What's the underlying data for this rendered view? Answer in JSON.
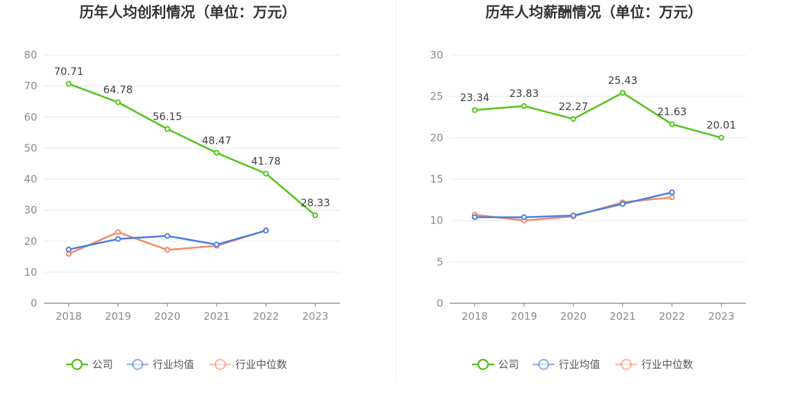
{
  "chart_data": [
    {
      "type": "line",
      "title": "历年人均创利情况（单位：万元）",
      "categories": [
        "2018",
        "2019",
        "2020",
        "2021",
        "2022",
        "2023"
      ],
      "ylim": [
        0,
        80
      ],
      "yticks": [
        0,
        10,
        20,
        30,
        40,
        50,
        60,
        70,
        80
      ],
      "grid": true,
      "legend_position": "bottom",
      "series": [
        {
          "name": "公司",
          "color": "#52c41a",
          "values": [
            70.71,
            64.78,
            56.15,
            48.47,
            41.78,
            28.33
          ],
          "labels": [
            "70.71",
            "64.78",
            "56.15",
            "48.47",
            "41.78",
            "28.33"
          ]
        },
        {
          "name": "行业均值",
          "color": "#4a7fe0",
          "values": [
            17.3,
            20.7,
            21.7,
            18.9,
            23.4,
            null
          ]
        },
        {
          "name": "行业中位数",
          "color": "#f08b66",
          "values": [
            15.9,
            22.9,
            17.2,
            18.5,
            23.5,
            null
          ]
        }
      ]
    },
    {
      "type": "line",
      "title": "历年人均薪酬情况（单位：万元）",
      "categories": [
        "2018",
        "2019",
        "2020",
        "2021",
        "2022",
        "2023"
      ],
      "ylim": [
        0,
        30
      ],
      "yticks": [
        0,
        5,
        10,
        15,
        20,
        25,
        30
      ],
      "grid": true,
      "legend_position": "bottom",
      "series": [
        {
          "name": "公司",
          "color": "#52c41a",
          "values": [
            23.34,
            23.83,
            22.27,
            25.43,
            21.63,
            20.01
          ],
          "labels": [
            "23.34",
            "23.83",
            "22.27",
            "25.43",
            "21.63",
            "20.01"
          ]
        },
        {
          "name": "行业均值",
          "color": "#4a7fe0",
          "values": [
            10.4,
            10.4,
            10.6,
            12.0,
            13.4,
            null
          ]
        },
        {
          "name": "行业中位数",
          "color": "#f08b66",
          "values": [
            10.7,
            10.0,
            10.5,
            12.2,
            12.8,
            null
          ]
        }
      ]
    }
  ]
}
